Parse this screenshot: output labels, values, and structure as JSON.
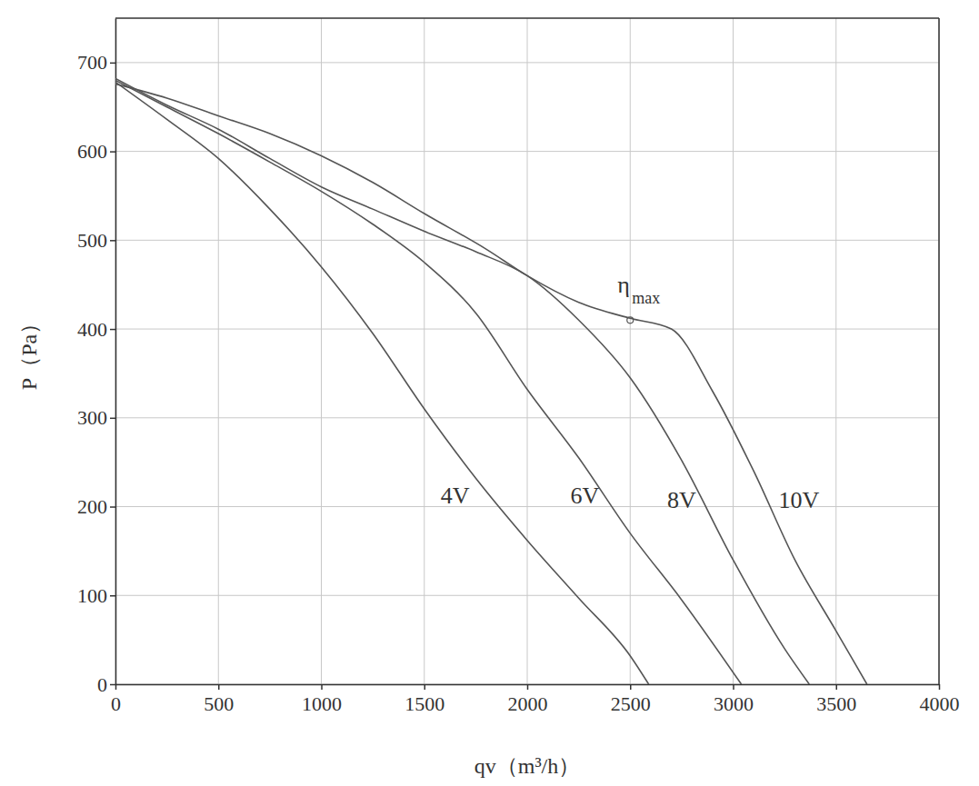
{
  "chart_data": {
    "type": "line",
    "x_label": "qv（m³/h）",
    "y_label": "P（Pa）",
    "xlim": [
      0,
      4000
    ],
    "ylim": [
      0,
      750
    ],
    "xticks": [
      0,
      500,
      1000,
      1500,
      2000,
      2500,
      3000,
      3500,
      4000
    ],
    "yticks": [
      0,
      100,
      200,
      300,
      400,
      500,
      600,
      700
    ],
    "grid": true,
    "color": "#555555",
    "series": [
      {
        "name": "4V",
        "label_position": [
          1650,
          210
        ],
        "x": [
          0,
          250,
          500,
          750,
          1000,
          1250,
          1500,
          1750,
          2000,
          2250,
          2500,
          2590
        ],
        "values": [
          678,
          636,
          592,
          535,
          470,
          395,
          310,
          232,
          162,
          97,
          32,
          0
        ]
      },
      {
        "name": "6V",
        "label_position": [
          2280,
          210
        ],
        "x": [
          0,
          250,
          500,
          750,
          1000,
          1250,
          1500,
          1750,
          2000,
          2250,
          2500,
          2750,
          3040
        ],
        "values": [
          680,
          650,
          620,
          588,
          555,
          518,
          475,
          418,
          332,
          255,
          170,
          95,
          0
        ]
      },
      {
        "name": "8V",
        "label_position": [
          2750,
          205
        ],
        "x": [
          0,
          250,
          500,
          750,
          1000,
          1250,
          1500,
          1750,
          2000,
          2250,
          2500,
          2750,
          3000,
          3250,
          3370
        ],
        "values": [
          682,
          652,
          625,
          592,
          560,
          535,
          510,
          487,
          460,
          410,
          345,
          252,
          140,
          40,
          0
        ]
      },
      {
        "name": "10V",
        "label_position": [
          3320,
          205
        ],
        "x": [
          0,
          250,
          500,
          750,
          1000,
          1250,
          1500,
          1800,
          2000,
          2250,
          2500,
          2700,
          2900,
          3100,
          3300,
          3500,
          3650
        ],
        "values": [
          676,
          660,
          640,
          620,
          595,
          565,
          530,
          490,
          460,
          430,
          412,
          400,
          330,
          240,
          140,
          60,
          0
        ]
      }
    ],
    "annotations": [
      {
        "text": "η",
        "sub": "max",
        "x": 2500,
        "y": 410
      }
    ]
  }
}
